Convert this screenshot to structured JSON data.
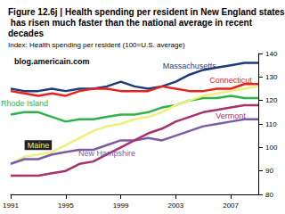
{
  "chart_data": {
    "type": "line",
    "title": "Figure 12.6j | Health spending per resident in New England states has risen much faster than the national average in recent decades",
    "subtitle": "Index: Health spending per resident (100=U.S. average)",
    "annotations": [
      "blog.americain.com"
    ],
    "x": [
      1991,
      1992,
      1993,
      1994,
      1995,
      1996,
      1997,
      1998,
      1999,
      2000,
      2001,
      2002,
      2003,
      2004,
      2005,
      2006,
      2007,
      2008,
      2009
    ],
    "xlim": [
      1991,
      2009
    ],
    "xticks": [
      1991,
      1995,
      1999,
      2003,
      2007
    ],
    "ylim": [
      80,
      140
    ],
    "yticks": [
      80,
      90,
      100,
      110,
      120,
      130,
      140
    ],
    "grid": false,
    "series": [
      {
        "name": "Massachusetts",
        "color": "#1f3a7a",
        "values": [
          125,
          124,
          124,
          125,
          124,
          125,
          125,
          126,
          128,
          126,
          125,
          126,
          128,
          131,
          133,
          134,
          135,
          136,
          136
        ]
      },
      {
        "name": "Connecticut",
        "color": "#e8221c",
        "values": [
          124,
          123,
          122,
          123,
          122,
          124,
          125,
          125,
          124,
          124,
          124,
          126,
          125,
          124,
          124,
          125,
          125,
          127,
          127
        ]
      },
      {
        "name": "Rhode Island",
        "color": "#2db34a",
        "values": [
          114,
          115,
          115,
          113,
          111,
          112,
          112,
          113,
          114,
          114,
          115,
          117,
          118,
          120,
          121,
          121,
          122,
          121,
          121
        ]
      },
      {
        "name": "Maine",
        "color": "#eef07a",
        "values": [
          93,
          96,
          97,
          98,
          101,
          104,
          107,
          109,
          110,
          112,
          113,
          115,
          118,
          120,
          122,
          123,
          124,
          125,
          126
        ]
      },
      {
        "name": "New Hampshire",
        "color": "#7a5ba8",
        "values": [
          93,
          95,
          95,
          97,
          98,
          99,
          99,
          101,
          103,
          103,
          104,
          103,
          105,
          107,
          109,
          110,
          111,
          112,
          112
        ]
      },
      {
        "name": "Vermont",
        "color": "#a8316b",
        "values": [
          88,
          88,
          88,
          89,
          90,
          93,
          94,
          97,
          100,
          103,
          106,
          108,
          111,
          113,
          115,
          116,
          117,
          118,
          118
        ]
      }
    ]
  }
}
